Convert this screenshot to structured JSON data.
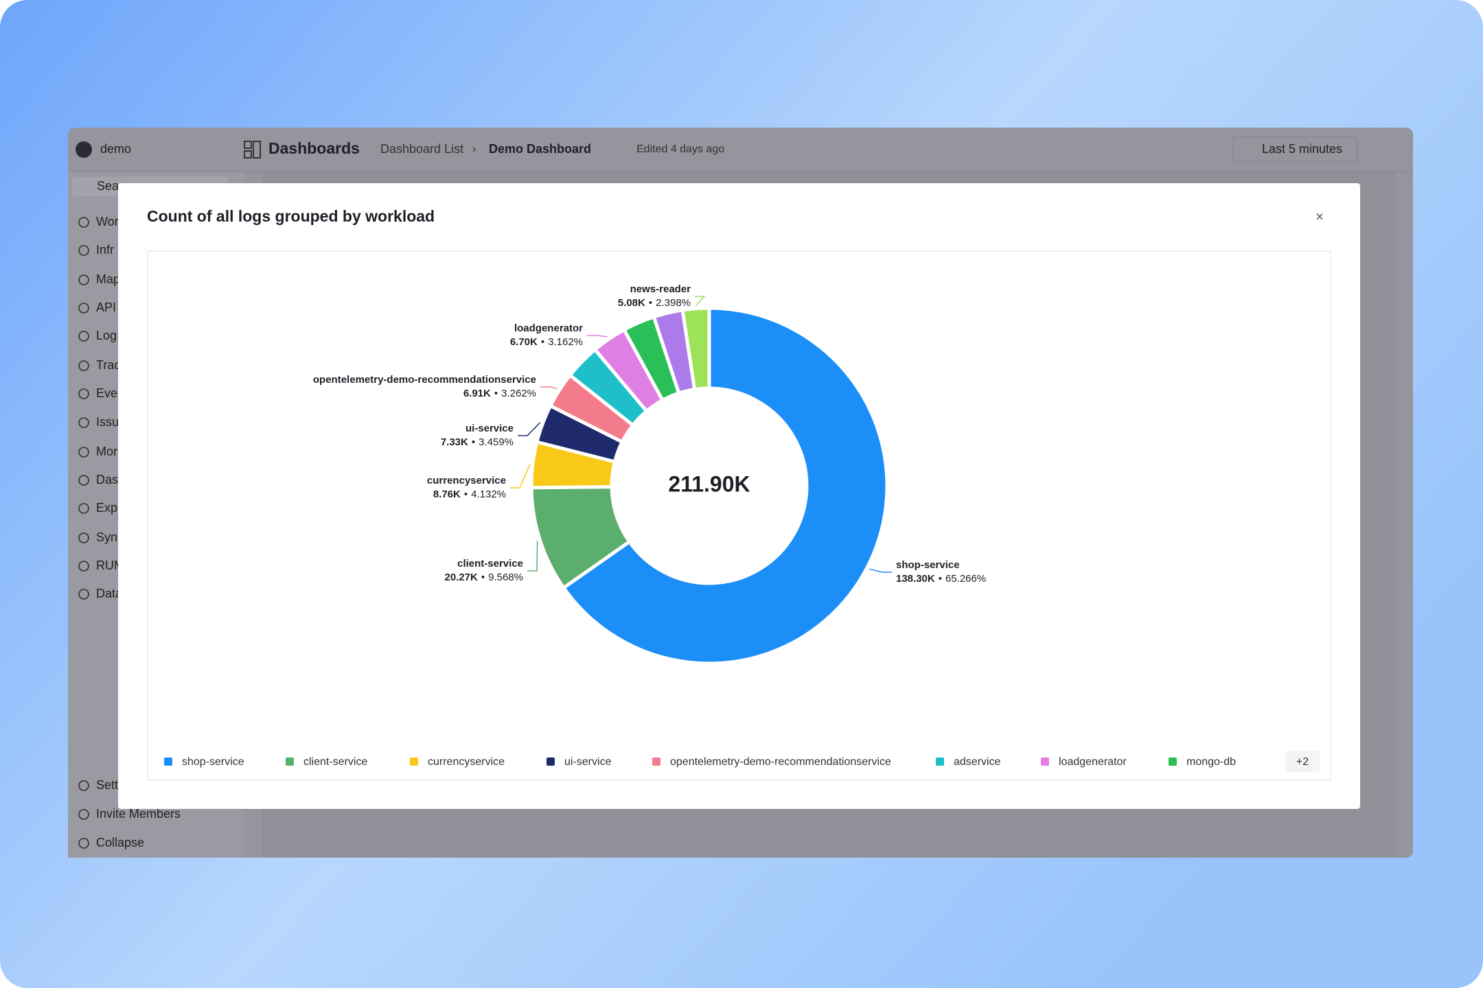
{
  "app": {
    "workspace": "demo",
    "section": "Dashboards",
    "breadcrumbs": [
      "Dashboard List",
      "Demo Dashboard"
    ],
    "edited": "Edited 4 days ago",
    "time_range": "Last 5 minutes",
    "search": "Sea",
    "sidebar": [
      "Wor",
      "Infr",
      "Map",
      "API",
      "Log",
      "Trac",
      "Eve",
      "Issu",
      "Mor",
      "Das",
      "Exp",
      "Syn",
      "RUM",
      "Data"
    ],
    "sidebar_bottom": [
      "Sett",
      "Invite Members",
      "Collapse"
    ],
    "legend_more": "+2"
  },
  "chart_data": {
    "type": "donut",
    "title": "Count of all logs grouped by workload",
    "center_label": "211.90K",
    "categories": [
      "shop-service",
      "client-service",
      "currencyservice",
      "ui-service",
      "opentelemetry-demo-recommendationservice",
      "adservice",
      "loadgenerator",
      "mongo-db",
      null,
      "news-reader"
    ],
    "values": [
      138300,
      20270,
      8760,
      7330,
      6910,
      6800,
      6700,
      6150,
      5600,
      5080
    ],
    "value_labels": [
      "138.30K",
      "20.27K",
      "8.76K",
      "7.33K",
      "6.91K",
      null,
      "6.70K",
      null,
      null,
      "5.08K"
    ],
    "percent_labels": [
      "65.266%",
      "9.568%",
      "4.132%",
      "3.459%",
      "3.262%",
      null,
      "3.162%",
      null,
      null,
      "2.398%"
    ],
    "label_separator": "•",
    "colors": [
      "#1b8ef8",
      "#5cae6e",
      "#f9c918",
      "#1e2a6b",
      "#f47b8c",
      "#1fbfc9",
      "#e07fe3",
      "#2bbf57",
      "#ad7be9",
      "#9de35a"
    ],
    "legend": true
  }
}
